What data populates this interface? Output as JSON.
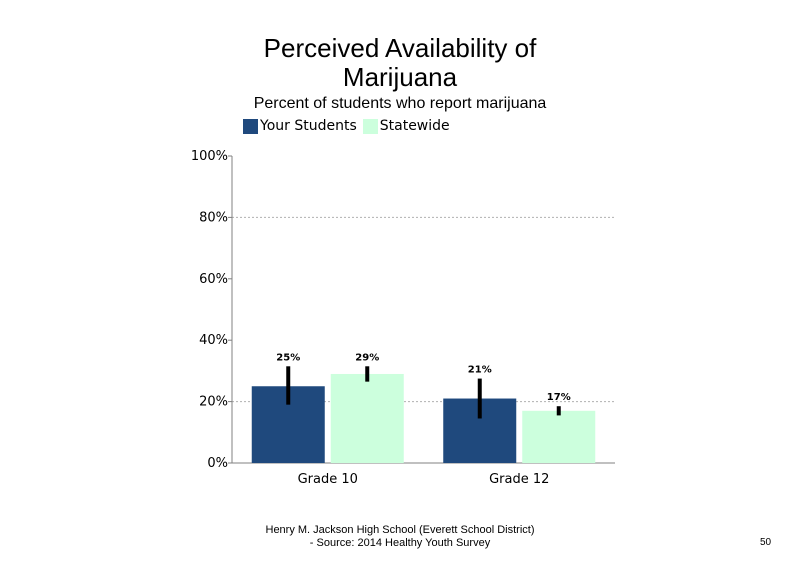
{
  "slide": {
    "footer_line1": "Henry M. Jackson High School (Everett School District)",
    "footer_line2": "- Source: 2014 Healthy Youth Survey",
    "page_number": "50"
  },
  "chart_data": {
    "type": "bar",
    "title": "Perceived Availability of\nMarijuana",
    "subtitle": "Percent of students  who report marijuana",
    "categories": [
      "Grade 10",
      "Grade 12"
    ],
    "series": [
      {
        "name": "Your Students",
        "color": "#1F497D",
        "values": [
          25,
          21
        ],
        "labels": [
          "25%",
          "21%"
        ],
        "error_low": [
          19,
          14.5
        ],
        "error_high": [
          31.5,
          27.5
        ]
      },
      {
        "name": "Statewide",
        "color": "#CCFFDD",
        "values": [
          29,
          17
        ],
        "labels": [
          "29%",
          "17%"
        ],
        "error_low": [
          26.5,
          15.5
        ],
        "error_high": [
          31.5,
          18.5
        ]
      }
    ],
    "ylim": [
      0,
      100
    ],
    "yticks": [
      "0%",
      "20%",
      "40%",
      "60%",
      "80%",
      "100%"
    ],
    "ytick_values": [
      0,
      20,
      40,
      60,
      80,
      100
    ],
    "gridlines": [
      20,
      80
    ],
    "legend_position": "top-left",
    "xlabel": "",
    "ylabel": ""
  }
}
